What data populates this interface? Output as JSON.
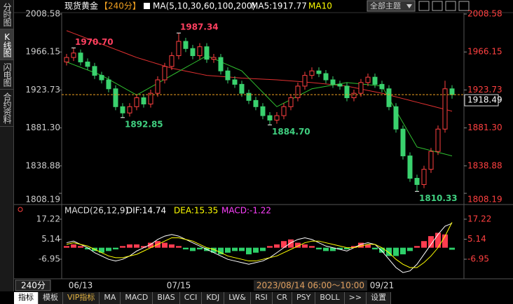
{
  "sidebar_tabs": [
    "分时图",
    "K线图",
    "闪电图",
    "合约资料"
  ],
  "header": {
    "instrument": "现货黄金",
    "period": "【240分】",
    "indicator": "MA(5,10,30,60,100,200)",
    "ma5": "MA5:1917.77",
    "ma10": "MA10",
    "theme": "全部主题"
  },
  "chart_data": [
    {
      "type": "candlestick",
      "categories": [
        null,
        null,
        "06/13",
        null,
        null,
        null,
        null,
        null,
        null,
        null,
        null,
        null,
        null,
        null,
        null,
        null,
        "07/15",
        null,
        null,
        null,
        null,
        null,
        null,
        null,
        null,
        null,
        null,
        null,
        null,
        null,
        null,
        null,
        null,
        null,
        null,
        null,
        null,
        null,
        null,
        null,
        null,
        null,
        null,
        null,
        null,
        "09/21",
        null,
        null,
        null,
        null,
        null,
        null,
        null,
        null,
        null,
        null
      ],
      "open": [
        1955,
        1960,
        1965,
        1955,
        1950,
        1940,
        1935,
        1925,
        1905,
        1898,
        1905,
        1915,
        1908,
        1920,
        1935,
        1950,
        1962,
        1978,
        1970,
        1962,
        1972,
        1958,
        1960,
        1945,
        1935,
        1930,
        1920,
        1912,
        1905,
        1895,
        1890,
        1895,
        1905,
        1915,
        1928,
        1940,
        1945,
        1942,
        1935,
        1930,
        1928,
        1915,
        1920,
        1932,
        1938,
        1930,
        1925,
        1905,
        1880,
        1850,
        1825,
        1818,
        1835,
        1855,
        1880,
        1925
      ],
      "high": [
        1964,
        1970.7,
        1969,
        1959,
        1954,
        1944,
        1939,
        1929,
        1909,
        1909,
        1919,
        1919,
        1924,
        1939,
        1954,
        1966,
        1987.34,
        1982,
        1974,
        1976,
        1976,
        1964,
        1964,
        1949,
        1939,
        1934,
        1924,
        1916,
        1909,
        1899,
        1899,
        1909,
        1919,
        1932,
        1944,
        1949,
        1949,
        1946,
        1939,
        1934,
        1932,
        1924,
        1936,
        1942,
        1942,
        1934,
        1929,
        1909,
        1884,
        1854,
        1829,
        1839,
        1859,
        1884,
        1934,
        1929
      ],
      "low": [
        1951,
        1956,
        1951,
        1946,
        1936,
        1931,
        1921,
        1901,
        1892.85,
        1894,
        1901,
        1904,
        1904,
        1916,
        1931,
        1946,
        1958,
        1966,
        1958,
        1958,
        1954,
        1954,
        1941,
        1931,
        1926,
        1916,
        1908,
        1901,
        1891,
        1884.7,
        1886,
        1891,
        1901,
        1911,
        1924,
        1936,
        1938,
        1931,
        1926,
        1924,
        1911,
        1911,
        1916,
        1928,
        1926,
        1921,
        1901,
        1876,
        1846,
        1821,
        1810.33,
        1814,
        1831,
        1851,
        1876,
        1914
      ],
      "close": [
        1960,
        1965,
        1955,
        1950,
        1940,
        1935,
        1925,
        1905,
        1898,
        1905,
        1915,
        1908,
        1920,
        1935,
        1950,
        1962,
        1978,
        1970,
        1962,
        1972,
        1958,
        1960,
        1945,
        1935,
        1930,
        1920,
        1912,
        1905,
        1895,
        1890,
        1895,
        1905,
        1915,
        1928,
        1940,
        1945,
        1942,
        1935,
        1930,
        1928,
        1915,
        1920,
        1932,
        1938,
        1930,
        1925,
        1905,
        1880,
        1850,
        1825,
        1818,
        1835,
        1855,
        1880,
        1925,
        1918.49
      ],
      "up_color": "#ff4040",
      "down_color": "#3ad26e",
      "ma_lines": [
        {
          "color": "#e03030",
          "values": [
            1990,
            1987,
            1984,
            1981,
            1978,
            1975,
            1972,
            1969,
            1966,
            1963,
            1960,
            1957.6,
            1955.2,
            1952.8,
            1950.4,
            1948,
            1946.4,
            1944.8,
            1943.2,
            1941.6,
            1940,
            1939.4,
            1938.8,
            1938.2,
            1937.6,
            1937,
            1936.6,
            1936.2,
            1935.8,
            1935.4,
            1935,
            1934.4,
            1933.8,
            1933.2,
            1932.6,
            1932,
            1931.2,
            1930.4,
            1929.6,
            1928.8,
            1928,
            1926.4,
            1924.8,
            1923.2,
            1921.6,
            1920,
            1918,
            1916,
            1914,
            1912,
            1910,
            1908,
            1906,
            1904,
            1902,
            1900
          ]
        },
        {
          "color": "#30c030",
          "values": [
            1955,
            1952,
            1949,
            1946,
            1943,
            1940,
            1935.6,
            1931.2,
            1926.8,
            1922.4,
            1918,
            1922.4,
            1926.8,
            1931.2,
            1935.6,
            1940,
            1944.4,
            1948.8,
            1953.2,
            1957.6,
            1962,
            1958.6,
            1955.2,
            1951.8,
            1948.4,
            1945,
            1937,
            1929,
            1921,
            1913,
            1905,
            1909,
            1913,
            1917,
            1921,
            1925,
            1926.4,
            1927.8,
            1929.2,
            1930.6,
            1932,
            1931.2,
            1930.4,
            1929.6,
            1928.8,
            1928,
            1914.4,
            1900.8,
            1887.2,
            1873.6,
            1860,
            1858,
            1856,
            1854,
            1852,
            1850
          ]
        }
      ],
      "annotations": [
        "1970.70",
        "1892.85",
        "1987.34",
        "1884.70",
        "1810.33"
      ],
      "ylim": [
        1808.19,
        2008.58
      ],
      "yticks": [
        2008.58,
        1966.15,
        1923.73,
        {
          "value": 1881.3,
          "label": "1881.30"
        },
        1838.88,
        1808.19
      ]
    },
    {
      "type": "macd",
      "legend": [
        {
          "label": "MACD(26,12,9)",
          "color": "#e0e0e0"
        },
        {
          "label": "DIF:14.74",
          "color": "#ffffff"
        },
        {
          "label": "DEA:15.35",
          "color": "#ffff00"
        },
        {
          "label": "MACD:-1.22",
          "color": "#ff40ff"
        }
      ],
      "histogram": [
        1,
        2,
        1,
        -1,
        -2,
        -3,
        -2,
        -1,
        1,
        2,
        2,
        1,
        3,
        4,
        3,
        2,
        1,
        -1,
        -2,
        -1,
        -2,
        -3,
        -4,
        -3,
        -2,
        -2,
        -4,
        -3,
        -2,
        1,
        2,
        4,
        5,
        3,
        2,
        1,
        -1,
        -2,
        -2,
        -1,
        -1,
        1,
        3,
        2,
        -1,
        -3,
        -5,
        -5,
        -4,
        -2,
        1,
        4,
        7,
        9,
        8,
        -1.22
      ],
      "up_color": "#ff3c50",
      "down_color": "#2ed06a",
      "series": [
        {
          "color": "#ffffff",
          "values": [
            3,
            4,
            2,
            0,
            -3,
            -5,
            -7,
            -8,
            -7,
            -5,
            -2,
            0,
            2,
            5,
            7,
            8,
            7,
            5,
            3,
            1,
            -1,
            -3,
            -5,
            -7,
            -8,
            -9,
            -10,
            -9,
            -8,
            -6,
            -3,
            0,
            3,
            5,
            6,
            5,
            3,
            1,
            0,
            -1,
            -2,
            0,
            2,
            3,
            2,
            -2,
            -7,
            -12,
            -15,
            -14,
            -10,
            -4,
            2,
            8,
            13,
            14.74
          ]
        },
        {
          "color": "#ffff00",
          "values": [
            2,
            3,
            2,
            1,
            -1,
            -3,
            -5,
            -6,
            -6,
            -5,
            -4,
            -2,
            0,
            2,
            4,
            6,
            6,
            5,
            4,
            2,
            0,
            -1,
            -3,
            -5,
            -6,
            -7,
            -8,
            -8,
            -7,
            -6,
            -5,
            -3,
            -1,
            1,
            3,
            4,
            4,
            3,
            2,
            1,
            0,
            0,
            1,
            2,
            2,
            0,
            -3,
            -7,
            -10,
            -12,
            -12,
            -9,
            -5,
            0,
            7,
            15.35
          ]
        }
      ],
      "ylim": [
        -17.5,
        22.7
      ],
      "yticks": [
        17.22,
        5.14,
        -6.95
      ]
    }
  ],
  "time_axis": {
    "period": "240分",
    "cursor": "2023/08/14 06:00～10:00"
  },
  "toolbar": [
    "指标",
    "模板",
    "VIP指标",
    "MA",
    "MACD",
    "BIAS",
    "CCI",
    "KDJ",
    "LW&",
    "RSI",
    "CR",
    "PSY",
    "BOLL",
    ">>",
    "设置"
  ]
}
